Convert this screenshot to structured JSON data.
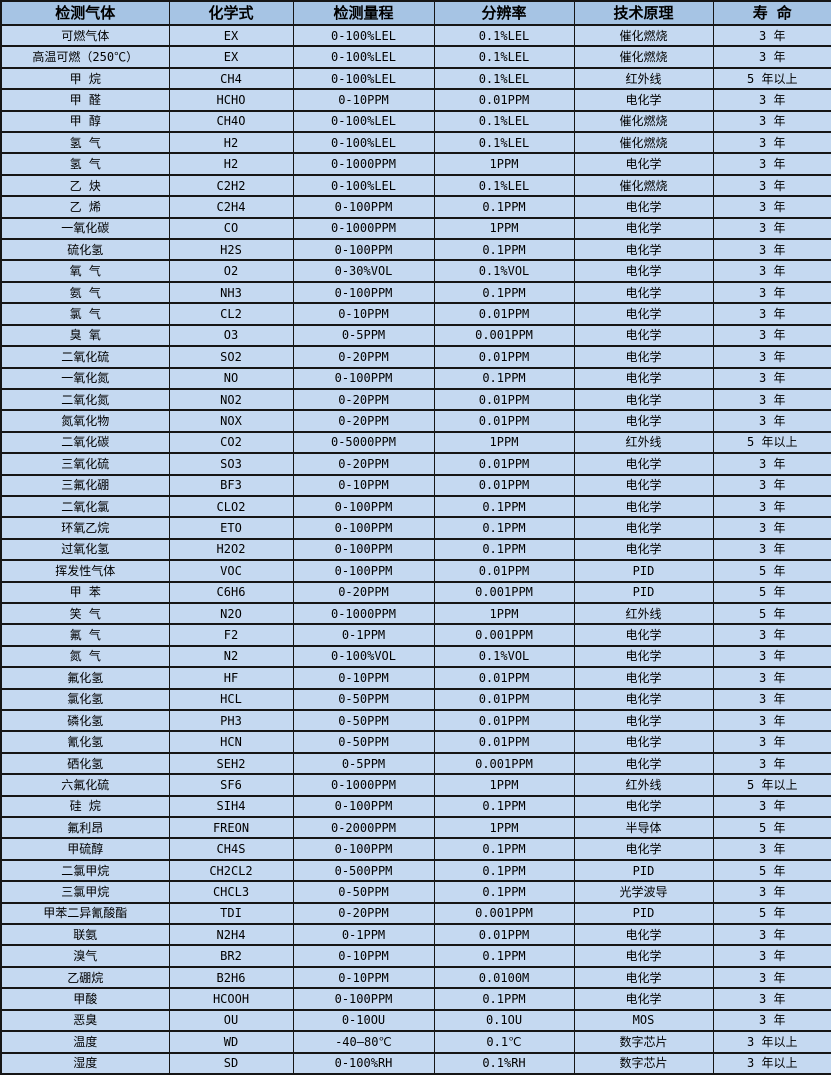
{
  "chart_data": {
    "type": "table",
    "title": "",
    "columns": [
      "检测气体",
      "化学式",
      "检测量程",
      "分辨率",
      "技术原理",
      "寿 命"
    ],
    "rows": [
      [
        "可燃气体",
        "EX",
        "0-100%LEL",
        "0.1%LEL",
        "催化燃烧",
        "3 年"
      ],
      [
        "高温可燃（250℃）",
        "EX",
        "0-100%LEL",
        "0.1%LEL",
        "催化燃烧",
        "3 年"
      ],
      [
        "甲 烷",
        "CH4",
        "0-100%LEL",
        "0.1%LEL",
        "红外线",
        "5 年以上"
      ],
      [
        "甲 醛",
        "HCHO",
        "0-10PPM",
        "0.01PPM",
        "电化学",
        "3 年"
      ],
      [
        "甲 醇",
        "CH4O",
        "0-100%LEL",
        "0.1%LEL",
        "催化燃烧",
        "3 年"
      ],
      [
        "氢 气",
        "H2",
        "0-100%LEL",
        "0.1%LEL",
        "催化燃烧",
        "3 年"
      ],
      [
        "氢 气",
        "H2",
        "0-1000PPM",
        "1PPM",
        "电化学",
        "3 年"
      ],
      [
        "乙 炔",
        "C2H2",
        "0-100%LEL",
        "0.1%LEL",
        "催化燃烧",
        "3 年"
      ],
      [
        "乙 烯",
        "C2H4",
        "0-100PPM",
        "0.1PPM",
        "电化学",
        "3 年"
      ],
      [
        "一氧化碳",
        "CO",
        "0-1000PPM",
        "1PPM",
        "电化学",
        "3 年"
      ],
      [
        "硫化氢",
        "H2S",
        "0-100PPM",
        "0.1PPM",
        "电化学",
        "3 年"
      ],
      [
        "氧 气",
        "O2",
        "0-30%VOL",
        "0.1%VOL",
        "电化学",
        "3 年"
      ],
      [
        "氨 气",
        "NH3",
        "0-100PPM",
        "0.1PPM",
        "电化学",
        "3 年"
      ],
      [
        "氯 气",
        "CL2",
        "0-10PPM",
        "0.01PPM",
        "电化学",
        "3 年"
      ],
      [
        "臭 氧",
        "O3",
        "0-5PPM",
        "0.001PPM",
        "电化学",
        "3 年"
      ],
      [
        "二氧化硫",
        "SO2",
        "0-20PPM",
        "0.01PPM",
        "电化学",
        "3 年"
      ],
      [
        "一氧化氮",
        "NO",
        "0-100PPM",
        "0.1PPM",
        "电化学",
        "3 年"
      ],
      [
        "二氧化氮",
        "NO2",
        "0-20PPM",
        "0.01PPM",
        "电化学",
        "3 年"
      ],
      [
        "氮氧化物",
        "NOX",
        "0-20PPM",
        "0.01PPM",
        "电化学",
        "3 年"
      ],
      [
        "二氧化碳",
        "CO2",
        "0-5000PPM",
        "1PPM",
        "红外线",
        "5 年以上"
      ],
      [
        "三氧化硫",
        "SO3",
        "0-20PPM",
        "0.01PPM",
        "电化学",
        "3 年"
      ],
      [
        "三氟化硼",
        "BF3",
        "0-10PPM",
        "0.01PPM",
        "电化学",
        "3 年"
      ],
      [
        "二氧化氯",
        "CLO2",
        "0-100PPM",
        "0.1PPM",
        "电化学",
        "3 年"
      ],
      [
        "环氧乙烷",
        "ETO",
        "0-100PPM",
        "0.1PPM",
        "电化学",
        "3 年"
      ],
      [
        "过氧化氢",
        "H2O2",
        "0-100PPM",
        "0.1PPM",
        "电化学",
        "3 年"
      ],
      [
        "挥发性气体",
        "VOC",
        "0-100PPM",
        "0.01PPM",
        "PID",
        "5 年"
      ],
      [
        "甲 苯",
        "C6H6",
        "0-20PPM",
        "0.001PPM",
        "PID",
        "5 年"
      ],
      [
        "笑 气",
        "N2O",
        "0-1000PPM",
        "1PPM",
        "红外线",
        "5 年"
      ],
      [
        "氟 气",
        "F2",
        "0-1PPM",
        "0.001PPM",
        "电化学",
        "3 年"
      ],
      [
        "氮 气",
        "N2",
        "0-100%VOL",
        "0.1%VOL",
        "电化学",
        "3 年"
      ],
      [
        "氟化氢",
        "HF",
        "0-10PPM",
        "0.01PPM",
        "电化学",
        "3 年"
      ],
      [
        "氯化氢",
        "HCL",
        "0-50PPM",
        "0.01PPM",
        "电化学",
        "3 年"
      ],
      [
        "磷化氢",
        "PH3",
        "0-50PPM",
        "0.01PPM",
        "电化学",
        "3 年"
      ],
      [
        "氰化氢",
        "HCN",
        "0-50PPM",
        "0.01PPM",
        "电化学",
        "3 年"
      ],
      [
        "硒化氢",
        "SEH2",
        "0-5PPM",
        "0.001PPM",
        "电化学",
        "3 年"
      ],
      [
        "六氟化硫",
        "SF6",
        "0-1000PPM",
        "1PPM",
        "红外线",
        "5 年以上"
      ],
      [
        "硅 烷",
        "SIH4",
        "0-100PPM",
        "0.1PPM",
        "电化学",
        "3 年"
      ],
      [
        "氟利昂",
        "FREON",
        "0-2000PPM",
        "1PPM",
        "半导体",
        "5 年"
      ],
      [
        "甲硫醇",
        "CH4S",
        "0-100PPM",
        "0.1PPM",
        "电化学",
        "3 年"
      ],
      [
        "二氯甲烷",
        "CH2CL2",
        "0-500PPM",
        "0.1PPM",
        "PID",
        "5 年"
      ],
      [
        "三氯甲烷",
        "CHCL3",
        "0-50PPM",
        "0.1PPM",
        "光学波导",
        "3 年"
      ],
      [
        "甲苯二异氰酸酯",
        "TDI",
        "0-20PPM",
        "0.001PPM",
        "PID",
        "5 年"
      ],
      [
        "联氨",
        "N2H4",
        "0-1PPM",
        "0.01PPM",
        "电化学",
        "3 年"
      ],
      [
        "溴气",
        "BR2",
        "0-10PPM",
        "0.1PPM",
        "电化学",
        "3 年"
      ],
      [
        "乙硼烷",
        "B2H6",
        "0-10PPM",
        "0.0100M",
        "电化学",
        "3 年"
      ],
      [
        "甲酸",
        "HCOOH",
        "0-100PPM",
        "0.1PPM",
        "电化学",
        "3 年"
      ],
      [
        "恶臭",
        "OU",
        "0-10OU",
        "0.1OU",
        "MOS",
        "3 年"
      ],
      [
        "温度",
        "WD",
        "-40—80℃",
        "0.1℃",
        "数字芯片",
        "3 年以上"
      ],
      [
        "湿度",
        "SD",
        "0-100%RH",
        "0.1%RH",
        "数字芯片",
        "3 年以上"
      ]
    ],
    "layout": {
      "grid": "on",
      "legend": "none"
    },
    "colors": {
      "header_bg": "#a6c4e4",
      "row_bg": "#c5d9f1",
      "border": "#161616",
      "text": "#000000"
    }
  }
}
